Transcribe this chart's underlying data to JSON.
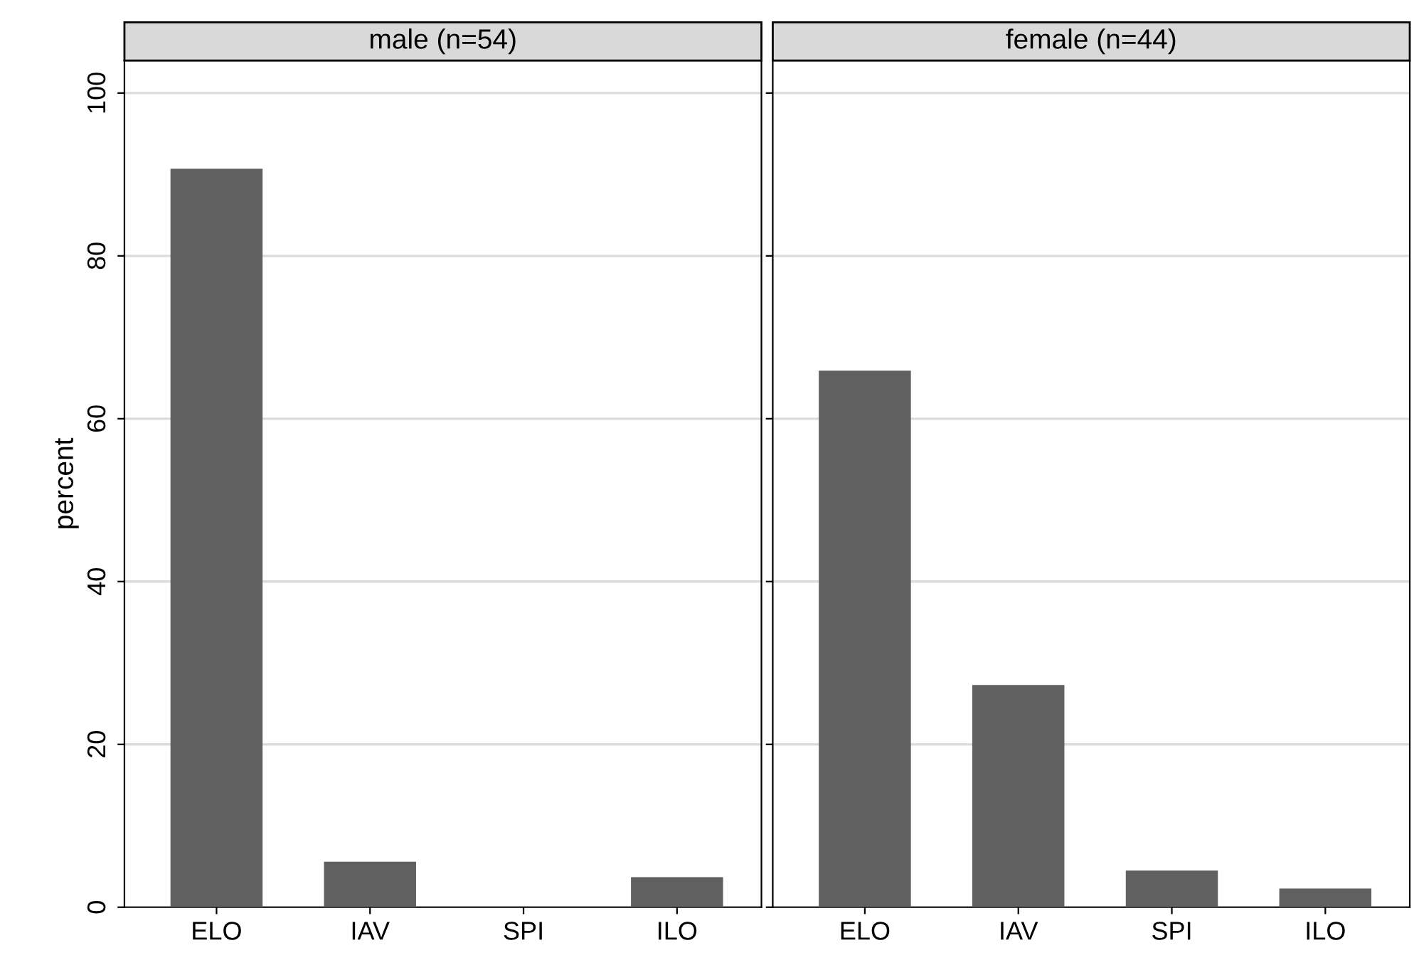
{
  "chart_data": [
    {
      "type": "bar",
      "title": "male (n=54)",
      "ylabel": "percent",
      "categories": [
        "ELO",
        "IAV",
        "SPI",
        "ILO"
      ],
      "series": [
        {
          "color": "#606060",
          "values": [
            90.7,
            5.6,
            0,
            3.7
          ]
        }
      ],
      "ylim": [
        0,
        104
      ],
      "yticks": [
        0,
        20,
        40,
        60,
        80,
        100
      ],
      "grid": "y",
      "legend": false
    },
    {
      "type": "bar",
      "title": "female (n=44)",
      "categories": [
        "ELO",
        "IAV",
        "SPI",
        "ILO"
      ],
      "series": [
        {
          "color": "#606060",
          "values": [
            65.9,
            27.3,
            4.5,
            2.3
          ]
        }
      ],
      "ylim": [
        0,
        104
      ],
      "yticks": [
        0,
        20,
        40,
        60,
        80,
        100
      ],
      "grid": "y",
      "legend": false,
      "tick_labels": "x"
    }
  ]
}
